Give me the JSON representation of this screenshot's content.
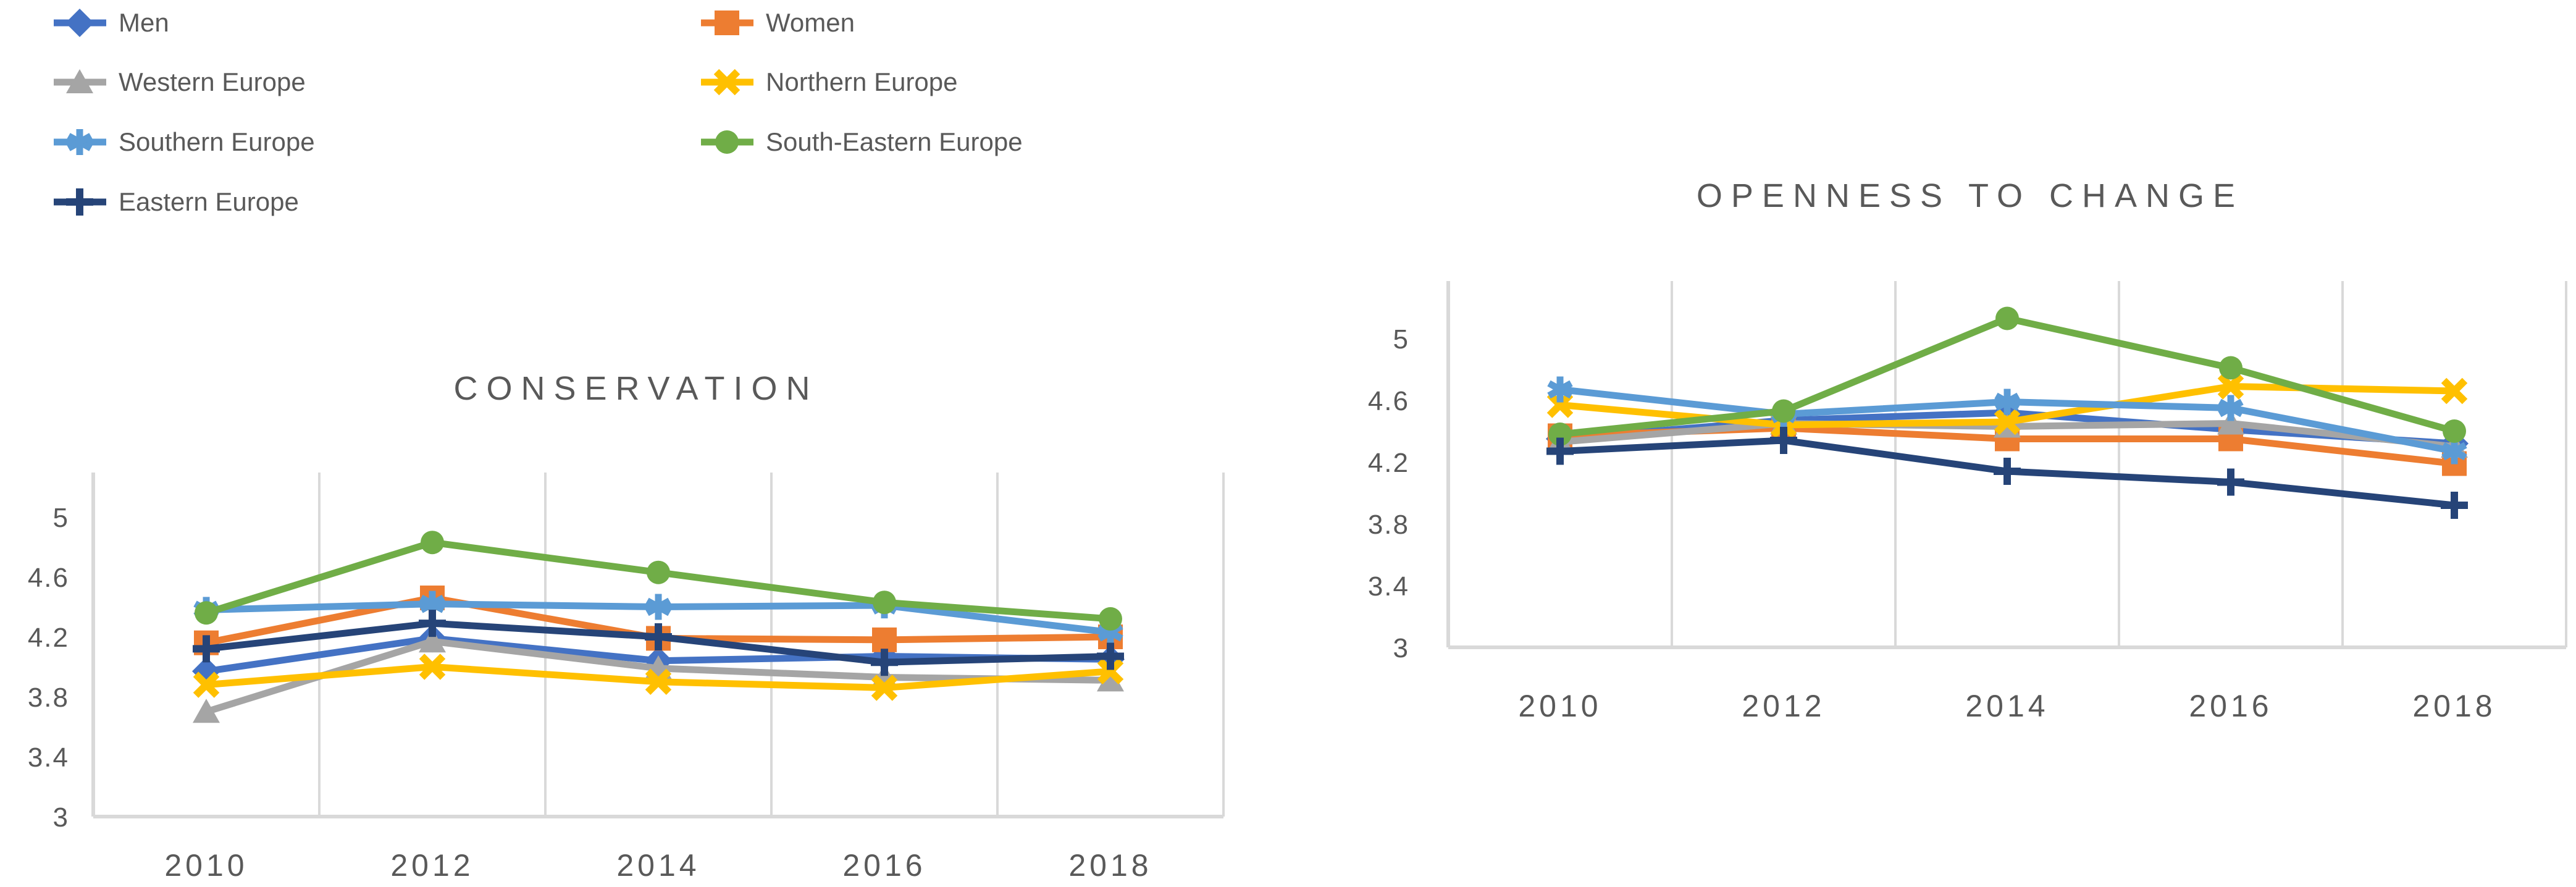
{
  "colors": {
    "text": "#595959",
    "grid": "#D9D9D9",
    "background": "#FFFFFF"
  },
  "legend": {
    "columns": [
      [
        "Men",
        "Western Europe",
        "Southern Europe",
        "Eastern Europe"
      ],
      [
        "Women",
        "Northern Europe",
        "South-Eastern Europe"
      ]
    ]
  },
  "chart_data": [
    {
      "type": "line",
      "title": "CONSERVATION",
      "categories": [
        "2010",
        "2012",
        "2014",
        "2016",
        "2018"
      ],
      "yticks": [
        3,
        3.4,
        3.8,
        4.2,
        4.6,
        5
      ],
      "ylim": [
        3,
        5
      ],
      "grid": "vertical-only",
      "legend_position": "top-left",
      "series": [
        {
          "name": "Men",
          "color": "#4472C4",
          "marker": "diamond",
          "values": [
            3.97,
            4.19,
            4.04,
            4.07,
            4.05
          ]
        },
        {
          "name": "Women",
          "color": "#ED7D31",
          "marker": "square",
          "values": [
            4.16,
            4.46,
            4.19,
            4.18,
            4.2
          ]
        },
        {
          "name": "Western Europe",
          "color": "#A5A5A5",
          "marker": "triangle",
          "values": [
            3.7,
            4.17,
            3.99,
            3.93,
            3.91
          ]
        },
        {
          "name": "Northern Europe",
          "color": "#FFC000",
          "marker": "x",
          "values": [
            3.88,
            4.0,
            3.9,
            3.86,
            3.97
          ]
        },
        {
          "name": "Southern Europe",
          "color": "#5B9BD5",
          "marker": "asterisk",
          "values": [
            4.38,
            4.42,
            4.4,
            4.41,
            4.23
          ]
        },
        {
          "name": "South-Eastern Europe",
          "color": "#70AD47",
          "marker": "circle",
          "values": [
            4.36,
            4.83,
            4.63,
            4.43,
            4.32
          ]
        },
        {
          "name": "Eastern Europe",
          "color": "#264478",
          "marker": "plus",
          "values": [
            4.12,
            4.29,
            4.2,
            4.03,
            4.07
          ]
        }
      ]
    },
    {
      "type": "line",
      "title": "OPENNESS TO CHANGE",
      "categories": [
        "2010",
        "2012",
        "2014",
        "2016",
        "2018"
      ],
      "yticks": [
        3,
        3.4,
        3.8,
        4.2,
        4.6,
        5
      ],
      "ylim": [
        3,
        5
      ],
      "grid": "vertical-only",
      "legend_position": "shared-top-left",
      "series": [
        {
          "name": "Men",
          "color": "#4472C4",
          "marker": "diamond",
          "values": [
            4.35,
            4.47,
            4.52,
            4.41,
            4.32
          ]
        },
        {
          "name": "Women",
          "color": "#ED7D31",
          "marker": "square",
          "values": [
            4.37,
            4.42,
            4.35,
            4.35,
            4.19
          ]
        },
        {
          "name": "Western Europe",
          "color": "#A5A5A5",
          "marker": "triangle",
          "values": [
            4.33,
            4.45,
            4.43,
            4.45,
            4.3
          ]
        },
        {
          "name": "Northern Europe",
          "color": "#FFC000",
          "marker": "x",
          "values": [
            4.57,
            4.44,
            4.46,
            4.69,
            4.66
          ]
        },
        {
          "name": "Southern Europe",
          "color": "#5B9BD5",
          "marker": "asterisk",
          "values": [
            4.67,
            4.51,
            4.59,
            4.55,
            4.27
          ]
        },
        {
          "name": "South-Eastern Europe",
          "color": "#70AD47",
          "marker": "circle",
          "values": [
            4.38,
            4.53,
            5.13,
            4.81,
            4.4
          ]
        },
        {
          "name": "Eastern Europe",
          "color": "#264478",
          "marker": "plus",
          "values": [
            4.27,
            4.34,
            4.14,
            4.07,
            3.92
          ]
        }
      ]
    }
  ]
}
